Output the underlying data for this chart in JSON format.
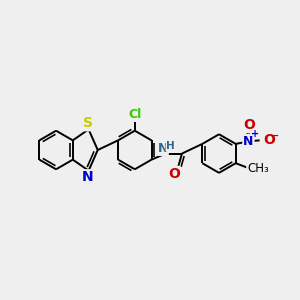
{
  "background_color": "#efefef",
  "figsize": [
    3.0,
    3.0
  ],
  "dpi": 100,
  "bond_color": "black",
  "bond_lw": 1.4,
  "atom_colors": {
    "S": "#cccc00",
    "N_thiaz": "#0000cc",
    "Cl": "#33cc00",
    "N_amide": "#336688",
    "O_carbonyl": "#cc0000",
    "N_nitro": "#0000cc",
    "O_nitro": "#cc0000"
  },
  "xlim": [
    0.0,
    5.8
  ],
  "ylim": [
    0.5,
    3.5
  ]
}
